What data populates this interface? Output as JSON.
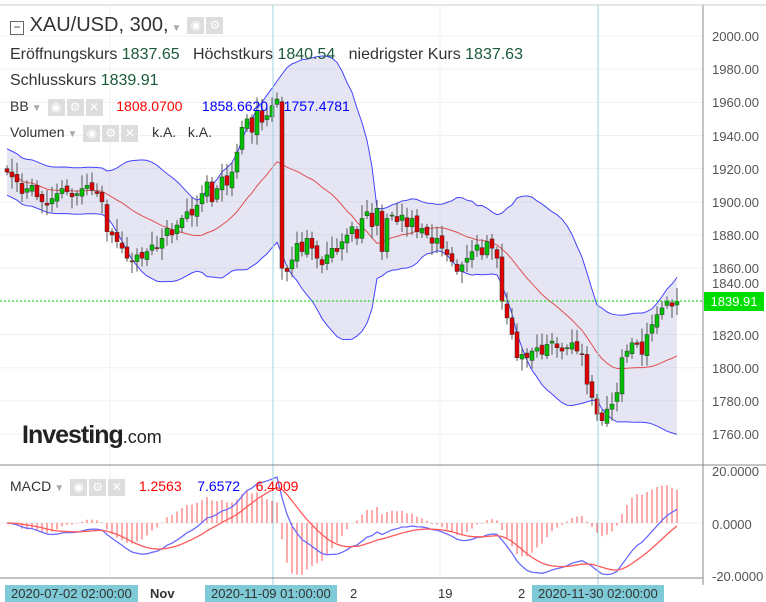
{
  "header": {
    "symbol": "XAU/USD, 300,",
    "open_label": "Eröffnungskurs",
    "open": "1837.65",
    "high_label": "Höchstkurs",
    "high": "1840.54",
    "low_label": "niedrigster Kurs",
    "low": "1837.63",
    "close_label": "Schlusskurs",
    "close": "1839.91"
  },
  "bb": {
    "label": "BB",
    "middle": "1808.0700",
    "upper": "1858.6620",
    "lower": "1757.4781"
  },
  "volume": {
    "label": "Volumen",
    "v1": "k.A.",
    "v2": "k.A."
  },
  "macd": {
    "label": "MACD",
    "hist": "1.2563",
    "macd": "7.6572",
    "signal": "6.4009"
  },
  "price_axis": [
    "2000.00",
    "1980.00",
    "1960.00",
    "1940.00",
    "1920.00",
    "1900.00",
    "1880.00",
    "1860.00",
    "1840.00",
    "1820.00",
    "1800.00",
    "1780.00",
    "1760.00"
  ],
  "macd_axis": [
    "20.0000",
    "0.0000",
    "-20.0000"
  ],
  "current_price": "1839.91",
  "x_labels": {
    "cursor1": "2020-07-02 02:00:00",
    "nov": "Nov",
    "cursor2": "2020-11-09 01:00:00",
    "d2": "2",
    "d19": "19",
    "d2b": "2",
    "cursor3": "2020-11-30 02:00:00"
  },
  "logo": {
    "main": "Investing",
    "suffix": ".com"
  },
  "colors": {
    "up": "#00c000",
    "down": "#e00000",
    "band": "#4444ff",
    "middle": "#e05050",
    "current": "#00dd00",
    "cursor": "#7ecad6"
  },
  "chart_data": {
    "type": "candlestick",
    "ylim": [
      1750,
      2010
    ],
    "macd_ylim": [
      -20,
      20
    ],
    "closes": [
      1918,
      1915,
      1912,
      1905,
      1908,
      1910,
      1903,
      1900,
      1898,
      1902,
      1905,
      1908,
      1906,
      1903,
      1905,
      1908,
      1910,
      1907,
      1905,
      1900,
      1882,
      1880,
      1876,
      1872,
      1866,
      1864,
      1868,
      1866,
      1870,
      1874,
      1872,
      1878,
      1884,
      1880,
      1886,
      1890,
      1894,
      1892,
      1898,
      1905,
      1912,
      1900,
      1908,
      1915,
      1910,
      1918,
      1930,
      1945,
      1950,
      1942,
      1955,
      1948,
      1952,
      1958,
      1962,
      1860,
      1858,
      1865,
      1875,
      1870,
      1878,
      1872,
      1866,
      1862,
      1868,
      1872,
      1870,
      1876,
      1880,
      1885,
      1878,
      1890,
      1894,
      1885,
      1896,
      1870,
      1890,
      1892,
      1888,
      1892,
      1885,
      1890,
      1882,
      1884,
      1880,
      1875,
      1878,
      1872,
      1868,
      1864,
      1858,
      1862,
      1866,
      1870,
      1874,
      1868,
      1876,
      1872,
      1866,
      1840,
      1830,
      1820,
      1806,
      1808,
      1806,
      1810,
      1812,
      1808,
      1814,
      1816,
      1812,
      1810,
      1812,
      1815,
      1810,
      1808,
      1790,
      1782,
      1772,
      1768,
      1775,
      1778,
      1785,
      1806,
      1810,
      1815,
      1814,
      1808,
      1820,
      1826,
      1832,
      1836,
      1840,
      1837,
      1840
    ]
  }
}
